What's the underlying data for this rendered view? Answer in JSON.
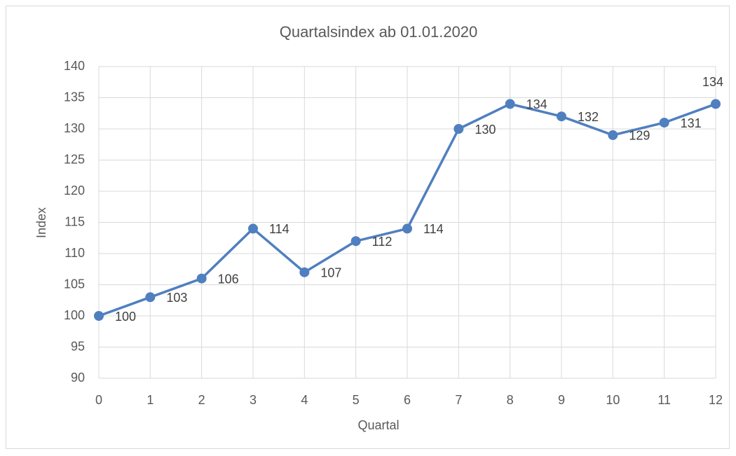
{
  "chart_data": {
    "type": "line",
    "title": "Quartalsindex ab 01.01.2020",
    "x_label": "Quartal",
    "y_label": "Index",
    "x": [
      0,
      1,
      2,
      3,
      4,
      5,
      6,
      7,
      8,
      9,
      10,
      11,
      12
    ],
    "series": [
      {
        "name": "Index",
        "color": "#4f7fbf",
        "values": [
          100,
          103,
          106,
          114,
          107,
          112,
          114,
          130,
          134,
          132,
          129,
          131,
          134
        ]
      }
    ],
    "xlim": [
      0,
      12
    ],
    "xticks": [
      0,
      1,
      2,
      3,
      4,
      5,
      6,
      7,
      8,
      9,
      10,
      11,
      12
    ],
    "ylim": [
      90,
      140
    ],
    "yticks": [
      90,
      95,
      100,
      105,
      110,
      115,
      120,
      125,
      130,
      135,
      140
    ],
    "grid": true
  }
}
